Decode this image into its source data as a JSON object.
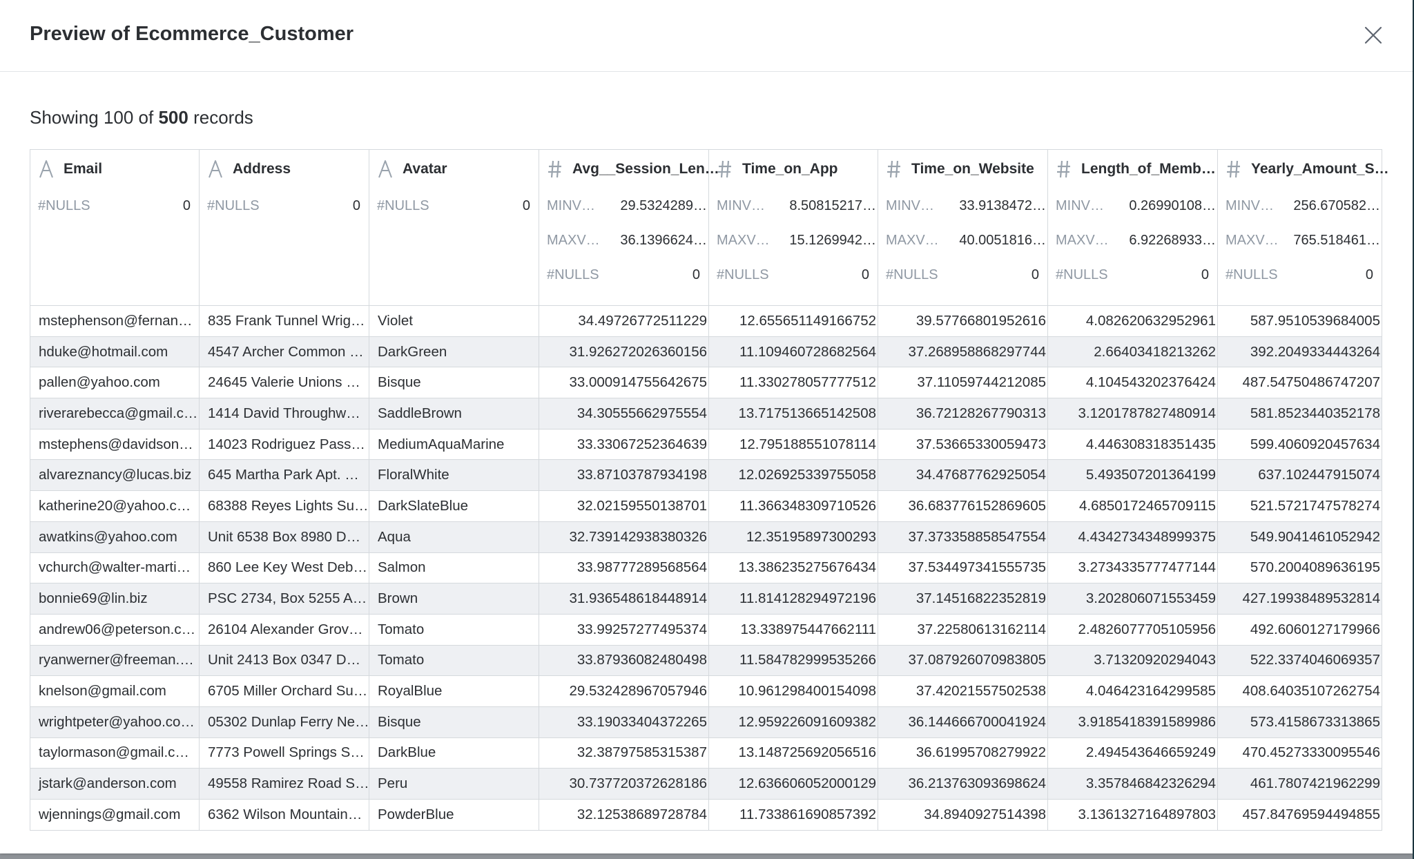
{
  "modal": {
    "title": "Preview of Ecommerce_Customer",
    "summary_prefix": "Showing 100 of ",
    "summary_total": "500",
    "summary_suffix": " records"
  },
  "columns": [
    {
      "name": "Email",
      "type": "text",
      "type_icon": "text-type-icon",
      "stats": [
        {
          "label": "#NULLS",
          "value": "0"
        }
      ]
    },
    {
      "name": "Address",
      "type": "text",
      "type_icon": "text-type-icon",
      "stats": [
        {
          "label": "#NULLS",
          "value": "0"
        }
      ]
    },
    {
      "name": "Avatar",
      "type": "text",
      "type_icon": "text-type-icon",
      "stats": [
        {
          "label": "#NULLS",
          "value": "0"
        }
      ]
    },
    {
      "name": "Avg__Session_Len…",
      "type": "number",
      "type_icon": "hash-type-icon",
      "stats": [
        {
          "label": "MINV…",
          "value": "29.5324289…"
        },
        {
          "label": "MAXV…",
          "value": "36.1396624…"
        },
        {
          "label": "#NULLS",
          "value": "0"
        }
      ]
    },
    {
      "name": "Time_on_App",
      "type": "number",
      "type_icon": "hash-type-icon",
      "stats": [
        {
          "label": "MINV…",
          "value": "8.50815217…"
        },
        {
          "label": "MAXV…",
          "value": "15.1269942…"
        },
        {
          "label": "#NULLS",
          "value": "0"
        }
      ]
    },
    {
      "name": "Time_on_Website",
      "type": "number",
      "type_icon": "hash-type-icon",
      "stats": [
        {
          "label": "MINV…",
          "value": "33.9138472…"
        },
        {
          "label": "MAXV…",
          "value": "40.0051816…"
        },
        {
          "label": "#NULLS",
          "value": "0"
        }
      ]
    },
    {
      "name": "Length_of_Memb…",
      "type": "number",
      "type_icon": "hash-type-icon",
      "stats": [
        {
          "label": "MINV…",
          "value": "0.26990108…"
        },
        {
          "label": "MAXV…",
          "value": "6.92268933…"
        },
        {
          "label": "#NULLS",
          "value": "0"
        }
      ]
    },
    {
      "name": "Yearly_Amount_S…",
      "type": "number",
      "type_icon": "hash-type-icon",
      "stats": [
        {
          "label": "MINV…",
          "value": "256.670582…"
        },
        {
          "label": "MAXV…",
          "value": "765.518461…"
        },
        {
          "label": "#NULLS",
          "value": "0"
        }
      ]
    }
  ],
  "rows": [
    [
      "mstephenson@fernan…",
      "835 Frank Tunnel Wrig…",
      "Violet",
      "34.49726772511229",
      "12.655651149166752",
      "39.57766801952616",
      "4.082620632952961",
      "587.9510539684005"
    ],
    [
      "hduke@hotmail.com",
      "4547 Archer Common …",
      "DarkGreen",
      "31.926272026360156",
      "11.109460728682564",
      "37.268958868297744",
      "2.66403418213262",
      "392.2049334443264"
    ],
    [
      "pallen@yahoo.com",
      "24645 Valerie Unions …",
      "Bisque",
      "33.000914755642675",
      "11.330278057777512",
      "37.11059744212085",
      "4.104543202376424",
      "487.54750486747207"
    ],
    [
      "riverarebecca@gmail.c…",
      "1414 David Throughw…",
      "SaddleBrown",
      "34.30555662975554",
      "13.717513665142508",
      "36.72128267790313",
      "3.1201787827480914",
      "581.8523440352178"
    ],
    [
      "mstephens@davidson…",
      "14023 Rodriguez Pass…",
      "MediumAquaMarine",
      "33.33067252364639",
      "12.795188551078114",
      "37.53665330059473",
      "4.446308318351435",
      "599.4060920457634"
    ],
    [
      "alvareznancy@lucas.biz",
      "645 Martha Park Apt. …",
      "FloralWhite",
      "33.87103787934198",
      "12.026925339755058",
      "34.47687762925054",
      "5.493507201364199",
      "637.102447915074"
    ],
    [
      "katherine20@yahoo.c…",
      "68388 Reyes Lights Su…",
      "DarkSlateBlue",
      "32.02159550138701",
      "11.366348309710526",
      "36.683776152869605",
      "4.6850172465709115",
      "521.5721747578274"
    ],
    [
      "awatkins@yahoo.com",
      "Unit 6538 Box 8980 D…",
      "Aqua",
      "32.739142938380326",
      "12.35195897300293",
      "37.373358858547554",
      "4.4342734348999375",
      "549.9041461052942"
    ],
    [
      "vchurch@walter-marti…",
      "860 Lee Key West Deb…",
      "Salmon",
      "33.98777289568564",
      "13.386235275676434",
      "37.534497341555735",
      "3.2734335777477144",
      "570.2004089636195"
    ],
    [
      "bonnie69@lin.biz",
      "PSC 2734, Box 5255 A…",
      "Brown",
      "31.936548618448914",
      "11.814128294972196",
      "37.14516822352819",
      "3.202806071553459",
      "427.19938489532814"
    ],
    [
      "andrew06@peterson.c…",
      "26104 Alexander Grov…",
      "Tomato",
      "33.99257277495374",
      "13.338975447662111",
      "37.22580613162114",
      "2.4826077705105956",
      "492.6060127179966"
    ],
    [
      "ryanwerner@freeman.…",
      "Unit 2413 Box 0347 D…",
      "Tomato",
      "33.87936082480498",
      "11.584782999535266",
      "37.087926070983805",
      "3.71320920294043",
      "522.3374046069357"
    ],
    [
      "knelson@gmail.com",
      "6705 Miller Orchard Su…",
      "RoyalBlue",
      "29.532428967057946",
      "10.961298400154098",
      "37.42021557502538",
      "4.046423164299585",
      "408.64035107262754"
    ],
    [
      "wrightpeter@yahoo.co…",
      "05302 Dunlap Ferry Ne…",
      "Bisque",
      "33.19033404372265",
      "12.959226091609382",
      "36.144666700041924",
      "3.9185418391589986",
      "573.4158673313865"
    ],
    [
      "taylormason@gmail.c…",
      "7773 Powell Springs S…",
      "DarkBlue",
      "32.38797585315387",
      "13.148725692056516",
      "36.61995708279922",
      "2.494543646659249",
      "470.45273330095546"
    ],
    [
      "jstark@anderson.com",
      "49558 Ramirez Road S…",
      "Peru",
      "30.737720372628186",
      "12.636606052000129",
      "36.213763093698624",
      "3.357846842326294",
      "461.7807421962299"
    ],
    [
      "wjennings@gmail.com",
      "6362 Wilson Mountain…",
      "PowderBlue",
      "32.12538689728784",
      "11.733861690857392",
      "34.8940927514398",
      "3.1361327164897803",
      "457.84769594494855"
    ]
  ],
  "icons": {
    "close": "close-icon"
  },
  "colors": {
    "accent": "#1e3a44",
    "text": "#2c2f33",
    "muted": "#8f98a3",
    "row_alt": "#eef0f3",
    "border": "#d5d9dd"
  }
}
